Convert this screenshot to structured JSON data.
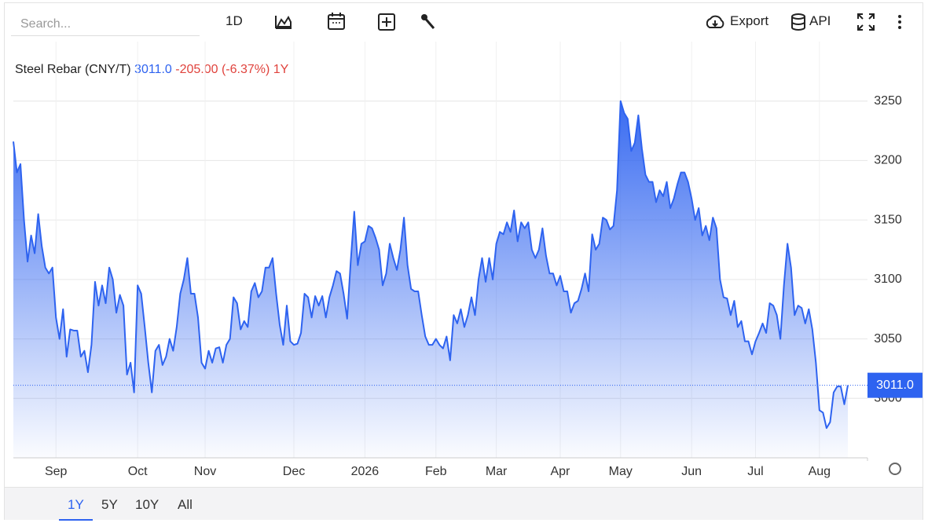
{
  "toolbar": {
    "search_placeholder": "Search...",
    "interval": "1D",
    "export": "Export",
    "api": "API"
  },
  "ranges": [
    "1Y",
    "5Y",
    "10Y",
    "All"
  ],
  "chart_data": {
    "type": "area",
    "title": "Steel Rebar (CNY/T)",
    "last": {
      "value": 3011,
      "label": "3011.0"
    },
    "change": "-205.00 (-6.37%)",
    "period": "1Y",
    "color": "#2e63f0",
    "grid": true,
    "series": [
      {
        "name": "Steel Rebar",
        "values": [
          3216,
          3190,
          3197,
          3150,
          3115,
          3137,
          3122,
          3155,
          3128,
          3110,
          3105,
          3110,
          3068,
          3050,
          3075,
          3035,
          3058,
          3057,
          3057,
          3035,
          3040,
          3022,
          3045,
          3098,
          3078,
          3095,
          3080,
          3110,
          3100,
          3072,
          3087,
          3078,
          3020,
          3030,
          3005,
          3095,
          3088,
          3060,
          3030,
          3005,
          3040,
          3045,
          3028,
          3035,
          3050,
          3040,
          3060,
          3088,
          3100,
          3118,
          3088,
          3088,
          3068,
          3030,
          3025,
          3040,
          3030,
          3042,
          3043,
          3030,
          3045,
          3050,
          3085,
          3080,
          3058,
          3065,
          3060,
          3090,
          3097,
          3085,
          3090,
          3110,
          3110,
          3118,
          3088,
          3062,
          3045,
          3078,
          3048,
          3045,
          3046,
          3055,
          3088,
          3085,
          3068,
          3086,
          3078,
          3086,
          3068,
          3085,
          3095,
          3107,
          3105,
          3088,
          3067,
          3115,
          3157,
          3112,
          3130,
          3132,
          3145,
          3143,
          3135,
          3125,
          3095,
          3105,
          3130,
          3118,
          3108,
          3125,
          3152,
          3112,
          3092,
          3090,
          3090,
          3070,
          3052,
          3045,
          3045,
          3050,
          3045,
          3042,
          3052,
          3032,
          3070,
          3063,
          3075,
          3060,
          3070,
          3085,
          3070,
          3100,
          3118,
          3098,
          3118,
          3100,
          3130,
          3140,
          3138,
          3148,
          3140,
          3158,
          3132,
          3148,
          3143,
          3148,
          3125,
          3118,
          3125,
          3143,
          3120,
          3105,
          3105,
          3095,
          3103,
          3090,
          3090,
          3072,
          3080,
          3082,
          3092,
          3105,
          3090,
          3138,
          3125,
          3130,
          3152,
          3150,
          3142,
          3145,
          3175,
          3250,
          3240,
          3235,
          3208,
          3215,
          3238,
          3210,
          3188,
          3182,
          3182,
          3165,
          3175,
          3170,
          3182,
          3160,
          3168,
          3180,
          3190,
          3190,
          3182,
          3168,
          3150,
          3160,
          3137,
          3145,
          3133,
          3152,
          3143,
          3100,
          3085,
          3084,
          3070,
          3082,
          3060,
          3065,
          3048,
          3048,
          3037,
          3048,
          3055,
          3063,
          3055,
          3080,
          3078,
          3070,
          3050,
          3095,
          3130,
          3110,
          3070,
          3078,
          3076,
          3063,
          3075,
          3058,
          3030,
          2990,
          2988,
          2975,
          2980,
          3005,
          3010,
          3010,
          2995,
          3011
        ]
      }
    ],
    "xlim": [
      0,
      235
    ],
    "xticks": [
      {
        "value": 12,
        "label": "Sep"
      },
      {
        "value": 35,
        "label": "Oct"
      },
      {
        "value": 54,
        "label": "Nov"
      },
      {
        "value": 79,
        "label": "Dec"
      },
      {
        "value": 99,
        "label": "2026"
      },
      {
        "value": 119,
        "label": "Feb"
      },
      {
        "value": 136,
        "label": "Mar"
      },
      {
        "value": 154,
        "label": "Apr"
      },
      {
        "value": 171,
        "label": "May"
      },
      {
        "value": 191,
        "label": "Jun"
      },
      {
        "value": 209,
        "label": "Jul"
      },
      {
        "value": 227,
        "label": "Aug"
      }
    ],
    "ylim": [
      2950,
      3300
    ],
    "yticks": [
      3000,
      3050,
      3100,
      3150,
      3200,
      3250
    ]
  }
}
